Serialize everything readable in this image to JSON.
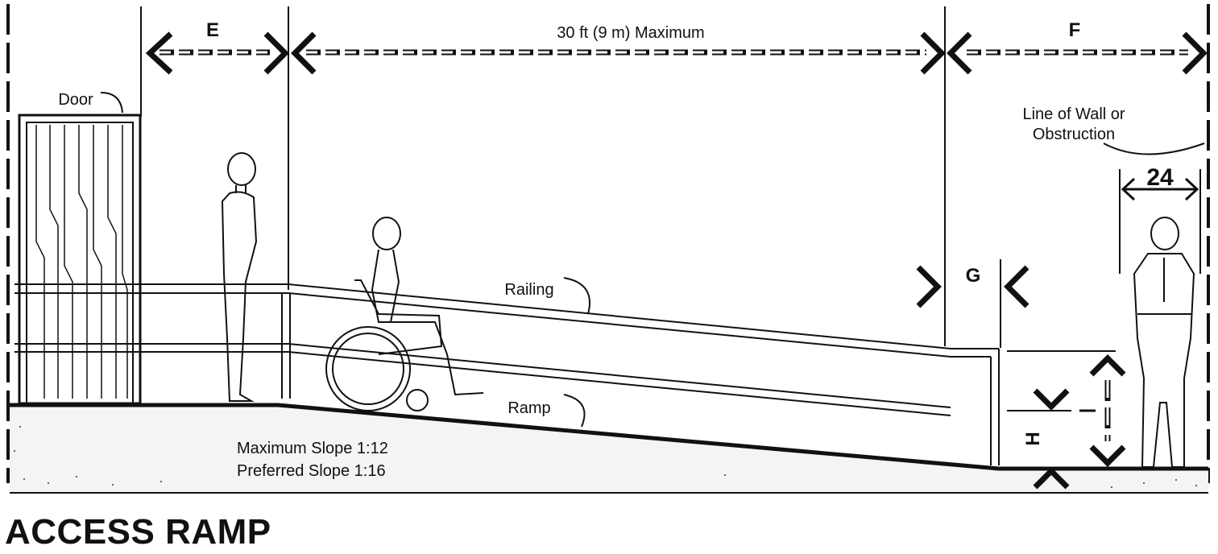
{
  "title": "ACCESS RAMP",
  "dimensions": {
    "e_label": "E",
    "run_label": "30 ft (9 m) Maximum",
    "f_label": "F",
    "g_label": "G",
    "h_label": "H",
    "clearance_value": "24"
  },
  "labels": {
    "door": "Door",
    "railing": "Railing",
    "ramp": "Ramp",
    "wall_line1": "Line of Wall or",
    "wall_line2": "Obstruction",
    "slope_max": "Maximum Slope 1:12",
    "slope_pref": "Preferred Slope 1:16"
  }
}
